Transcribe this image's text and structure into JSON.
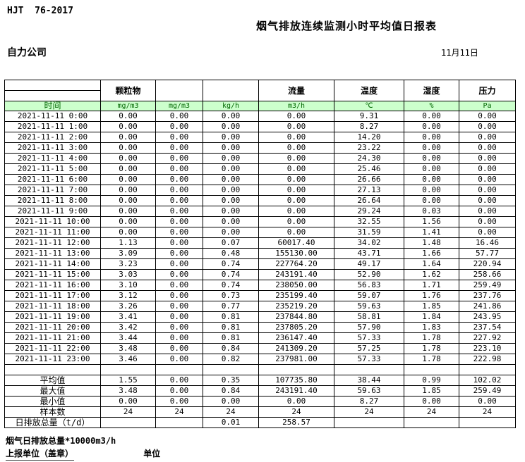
{
  "header": {
    "standard_code": "HJT  76-2017",
    "title": "烟气排放连续监测小时平均值日报表",
    "company": "自力公司",
    "date": "11月11日"
  },
  "table": {
    "time_header": "时间",
    "group_headers": [
      "",
      "颗粒物",
      "",
      "",
      "流量",
      "温度",
      "湿度",
      "压力"
    ],
    "units": [
      "mg/m3",
      "mg/m3",
      "kg/h",
      "m3/h",
      "℃",
      "%",
      "Pa"
    ],
    "rows": [
      {
        "time": "2021-11-11 0:00",
        "values": [
          "0.00",
          "0.00",
          "0.00",
          "0.00",
          "9.31",
          "0.00",
          "0.00"
        ]
      },
      {
        "time": "2021-11-11 1:00",
        "values": [
          "0.00",
          "0.00",
          "0.00",
          "0.00",
          "8.27",
          "0.00",
          "0.00"
        ]
      },
      {
        "time": "2021-11-11 2:00",
        "values": [
          "0.00",
          "0.00",
          "0.00",
          "0.00",
          "14.20",
          "0.00",
          "0.00"
        ]
      },
      {
        "time": "2021-11-11 3:00",
        "values": [
          "0.00",
          "0.00",
          "0.00",
          "0.00",
          "23.22",
          "0.00",
          "0.00"
        ]
      },
      {
        "time": "2021-11-11 4:00",
        "values": [
          "0.00",
          "0.00",
          "0.00",
          "0.00",
          "24.30",
          "0.00",
          "0.00"
        ]
      },
      {
        "time": "2021-11-11 5:00",
        "values": [
          "0.00",
          "0.00",
          "0.00",
          "0.00",
          "25.46",
          "0.00",
          "0.00"
        ]
      },
      {
        "time": "2021-11-11 6:00",
        "values": [
          "0.00",
          "0.00",
          "0.00",
          "0.00",
          "26.66",
          "0.00",
          "0.00"
        ]
      },
      {
        "time": "2021-11-11 7:00",
        "values": [
          "0.00",
          "0.00",
          "0.00",
          "0.00",
          "27.13",
          "0.00",
          "0.00"
        ]
      },
      {
        "time": "2021-11-11 8:00",
        "values": [
          "0.00",
          "0.00",
          "0.00",
          "0.00",
          "26.64",
          "0.00",
          "0.00"
        ]
      },
      {
        "time": "2021-11-11 9:00",
        "values": [
          "0.00",
          "0.00",
          "0.00",
          "0.00",
          "29.24",
          "0.03",
          "0.00"
        ]
      },
      {
        "time": "2021-11-11 10:00",
        "values": [
          "0.00",
          "0.00",
          "0.00",
          "0.00",
          "32.55",
          "1.56",
          "0.00"
        ]
      },
      {
        "time": "2021-11-11 11:00",
        "values": [
          "0.00",
          "0.00",
          "0.00",
          "0.00",
          "31.59",
          "1.41",
          "0.00"
        ]
      },
      {
        "time": "2021-11-11 12:00",
        "values": [
          "1.13",
          "0.00",
          "0.07",
          "60017.40",
          "34.02",
          "1.48",
          "16.46"
        ]
      },
      {
        "time": "2021-11-11 13:00",
        "values": [
          "3.09",
          "0.00",
          "0.48",
          "155130.00",
          "43.71",
          "1.66",
          "57.77"
        ]
      },
      {
        "time": "2021-11-11 14:00",
        "values": [
          "3.23",
          "0.00",
          "0.74",
          "227764.20",
          "49.17",
          "1.64",
          "220.94"
        ]
      },
      {
        "time": "2021-11-11 15:00",
        "values": [
          "3.03",
          "0.00",
          "0.74",
          "243191.40",
          "52.90",
          "1.62",
          "258.66"
        ]
      },
      {
        "time": "2021-11-11 16:00",
        "values": [
          "3.10",
          "0.00",
          "0.74",
          "238050.00",
          "56.83",
          "1.71",
          "259.49"
        ]
      },
      {
        "time": "2021-11-11 17:00",
        "values": [
          "3.12",
          "0.00",
          "0.73",
          "235199.40",
          "59.07",
          "1.76",
          "237.76"
        ]
      },
      {
        "time": "2021-11-11 18:00",
        "values": [
          "3.26",
          "0.00",
          "0.77",
          "235219.20",
          "59.63",
          "1.85",
          "241.86"
        ]
      },
      {
        "time": "2021-11-11 19:00",
        "values": [
          "3.41",
          "0.00",
          "0.81",
          "237844.80",
          "58.81",
          "1.84",
          "243.95"
        ]
      },
      {
        "time": "2021-11-11 20:00",
        "values": [
          "3.42",
          "0.00",
          "0.81",
          "237805.20",
          "57.90",
          "1.83",
          "237.54"
        ]
      },
      {
        "time": "2021-11-11 21:00",
        "values": [
          "3.44",
          "0.00",
          "0.81",
          "236147.40",
          "57.33",
          "1.78",
          "227.92"
        ]
      },
      {
        "time": "2021-11-11 22:00",
        "values": [
          "3.48",
          "0.00",
          "0.84",
          "241309.20",
          "57.25",
          "1.78",
          "223.10"
        ]
      },
      {
        "time": "2021-11-11 23:00",
        "values": [
          "3.46",
          "0.00",
          "0.82",
          "237981.00",
          "57.33",
          "1.78",
          "222.98"
        ]
      }
    ],
    "summary": [
      {
        "label": "平均值",
        "values": [
          "1.55",
          "0.00",
          "0.35",
          "107735.80",
          "38.44",
          "0.99",
          "102.02"
        ]
      },
      {
        "label": "最大值",
        "values": [
          "3.48",
          "0.00",
          "0.84",
          "243191.40",
          "59.63",
          "1.85",
          "259.49"
        ]
      },
      {
        "label": "最小值",
        "values": [
          "0.00",
          "0.00",
          "0.00",
          "0.00",
          "8.27",
          "0.00",
          "0.00"
        ]
      },
      {
        "label": "样本数",
        "values": [
          "24",
          "24",
          "24",
          "24",
          "24",
          "24",
          "24"
        ]
      },
      {
        "label": "日排放总量（t/d）",
        "values": [
          "",
          "",
          "0.01",
          "258.57",
          "",
          "",
          ""
        ]
      }
    ]
  },
  "footer": {
    "note": "烟气日排放总量*10000m3/h",
    "report_unit_label": "上报单位（盖章）",
    "unit_label": "单位"
  },
  "colors": {
    "header_green_bg": "#ccffcc",
    "header_green_text": "#006600",
    "border": "#000000"
  }
}
